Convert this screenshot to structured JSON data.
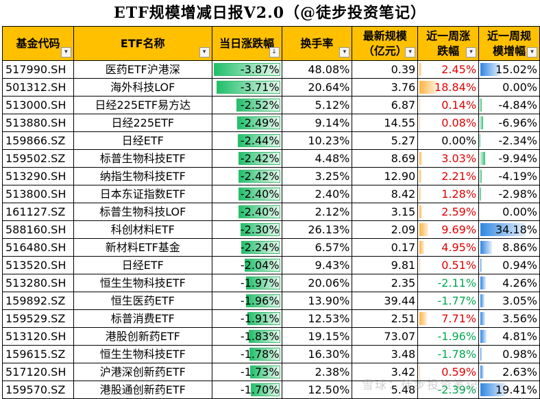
{
  "title": "ETF规模增减日报V2.0（@徒步投资笔记）",
  "headers": {
    "code": "基金代码",
    "name": "ETF名称",
    "daily_change": "当日涨跌幅",
    "turnover": "换手率",
    "scale_line1": "最新规模",
    "scale_line2": "（亿元）",
    "week_change_line1": "近一周涨",
    "week_change_line2": "跌幅",
    "week_scale_line1": "近一周规",
    "week_scale_line2": "模增幅"
  },
  "filter_icon": "dropdown-arrow",
  "sort_icon": "sort-descending",
  "colors": {
    "header_bg": "#FFC000",
    "positive": "#e00000",
    "negative": "#00a84f",
    "bar_green": "#3cbc6e",
    "bar_orange": "#ffb341",
    "bar_blue": "#2f86e3"
  },
  "rows": [
    {
      "code": "517990.SH",
      "name": "医药ETF沪港深",
      "daily_change": "-3.87%",
      "daily_change_value": -3.87,
      "turnover": "48.08%",
      "scale": "0.39",
      "week_change": "2.45%",
      "week_change_value": 2.45,
      "week_scale": "15.02%",
      "week_scale_value": 15.02
    },
    {
      "code": "501312.SH",
      "name": "海外科技LOF",
      "daily_change": "-3.71%",
      "daily_change_value": -3.71,
      "turnover": "20.64%",
      "scale": "3.76",
      "week_change": "18.84%",
      "week_change_value": 18.84,
      "week_scale": "0.00%",
      "week_scale_value": 0.0
    },
    {
      "code": "513000.SH",
      "name": "日经225ETF易方达",
      "daily_change": "-2.52%",
      "daily_change_value": -2.52,
      "turnover": "5.12%",
      "scale": "6.87",
      "week_change": "0.14%",
      "week_change_value": 0.14,
      "week_scale": "-4.84%",
      "week_scale_value": -4.84
    },
    {
      "code": "513880.SH",
      "name": "日经225ETF",
      "daily_change": "-2.49%",
      "daily_change_value": -2.49,
      "turnover": "9.14%",
      "scale": "14.55",
      "week_change": "0.08%",
      "week_change_value": 0.08,
      "week_scale": "-6.96%",
      "week_scale_value": -6.96
    },
    {
      "code": "159866.SZ",
      "name": "日经ETF",
      "daily_change": "-2.44%",
      "daily_change_value": -2.44,
      "turnover": "10.23%",
      "scale": "5.27",
      "week_change": "0.00%",
      "week_change_value": 0.0,
      "week_scale": "-2.34%",
      "week_scale_value": -2.34
    },
    {
      "code": "159502.SZ",
      "name": "标普生物科技ETF",
      "daily_change": "-2.42%",
      "daily_change_value": -2.42,
      "turnover": "4.48%",
      "scale": "8.69",
      "week_change": "3.03%",
      "week_change_value": 3.03,
      "week_scale": "-9.94%",
      "week_scale_value": -9.94
    },
    {
      "code": "513290.SH",
      "name": "纳指生物科技ETF",
      "daily_change": "-2.42%",
      "daily_change_value": -2.42,
      "turnover": "3.25%",
      "scale": "12.90",
      "week_change": "2.21%",
      "week_change_value": 2.21,
      "week_scale": "-4.19%",
      "week_scale_value": -4.19
    },
    {
      "code": "513800.SH",
      "name": "日本东证指数ETF",
      "daily_change": "-2.40%",
      "daily_change_value": -2.4,
      "turnover": "2.40%",
      "scale": "8.42",
      "week_change": "1.28%",
      "week_change_value": 1.28,
      "week_scale": "-2.98%",
      "week_scale_value": -2.98
    },
    {
      "code": "161127.SZ",
      "name": "标普生物科技LOF",
      "daily_change": "-2.40%",
      "daily_change_value": -2.4,
      "turnover": "2.12%",
      "scale": "3.15",
      "week_change": "2.59%",
      "week_change_value": 2.59,
      "week_scale": "0.00%",
      "week_scale_value": 0.0
    },
    {
      "code": "588160.SH",
      "name": "科创材料ETF",
      "daily_change": "-2.30%",
      "daily_change_value": -2.3,
      "turnover": "26.13%",
      "scale": "2.09",
      "week_change": "9.69%",
      "week_change_value": 9.69,
      "week_scale": "34.18%",
      "week_scale_value": 34.18
    },
    {
      "code": "516480.SH",
      "name": "新材料ETF基金",
      "daily_change": "-2.24%",
      "daily_change_value": -2.24,
      "turnover": "6.57%",
      "scale": "0.17",
      "week_change": "4.95%",
      "week_change_value": 4.95,
      "week_scale": "8.86%",
      "week_scale_value": 8.86
    },
    {
      "code": "513520.SH",
      "name": "日经ETF",
      "daily_change": "-2.04%",
      "daily_change_value": -2.04,
      "turnover": "9.43%",
      "scale": "9.81",
      "week_change": "0.51%",
      "week_change_value": 0.51,
      "week_scale": "0.94%",
      "week_scale_value": 0.94
    },
    {
      "code": "513280.SH",
      "name": "恒生生物科技ETF",
      "daily_change": "-1.97%",
      "daily_change_value": -1.97,
      "turnover": "20.06%",
      "scale": "2.35",
      "week_change": "-2.11%",
      "week_change_value": -2.11,
      "week_scale": "4.26%",
      "week_scale_value": 4.26
    },
    {
      "code": "159892.SZ",
      "name": "恒生医药ETF",
      "daily_change": "-1.96%",
      "daily_change_value": -1.96,
      "turnover": "13.90%",
      "scale": "39.44",
      "week_change": "-1.77%",
      "week_change_value": -1.77,
      "week_scale": "3.05%",
      "week_scale_value": 3.05
    },
    {
      "code": "159529.SZ",
      "name": "标普消费ETF",
      "daily_change": "-1.91%",
      "daily_change_value": -1.91,
      "turnover": "12.53%",
      "scale": "2.51",
      "week_change": "7.71%",
      "week_change_value": 7.71,
      "week_scale": "3.56%",
      "week_scale_value": 3.56
    },
    {
      "code": "513120.SH",
      "name": "港股创新药ETF",
      "daily_change": "-1.83%",
      "daily_change_value": -1.83,
      "turnover": "19.15%",
      "scale": "73.07",
      "week_change": "-1.96%",
      "week_change_value": -1.96,
      "week_scale": "4.81%",
      "week_scale_value": 4.81
    },
    {
      "code": "159615.SZ",
      "name": "恒生生物科技ETF",
      "daily_change": "-1.78%",
      "daily_change_value": -1.78,
      "turnover": "16.30%",
      "scale": "3.48",
      "week_change": "-1.78%",
      "week_change_value": -1.78,
      "week_scale": "0.98%",
      "week_scale_value": 0.98
    },
    {
      "code": "517120.SH",
      "name": "沪港深创新药ETF",
      "daily_change": "-1.73%",
      "daily_change_value": -1.73,
      "turnover": "2.38%",
      "scale": "3.42",
      "week_change": "0.59%",
      "week_change_value": 0.59,
      "week_scale": "2.63%",
      "week_scale_value": 2.63
    },
    {
      "code": "159570.SZ",
      "name": "港股通创新药ETF",
      "daily_change": "-1.70%",
      "daily_change_value": -1.7,
      "turnover": "12.50%",
      "scale": "5.48",
      "week_change": "-2.39%",
      "week_change_value": -2.39,
      "week_scale": "19.41%",
      "week_scale_value": 19.41
    }
  ],
  "watermark": "雪球：徒步投资笔记"
}
